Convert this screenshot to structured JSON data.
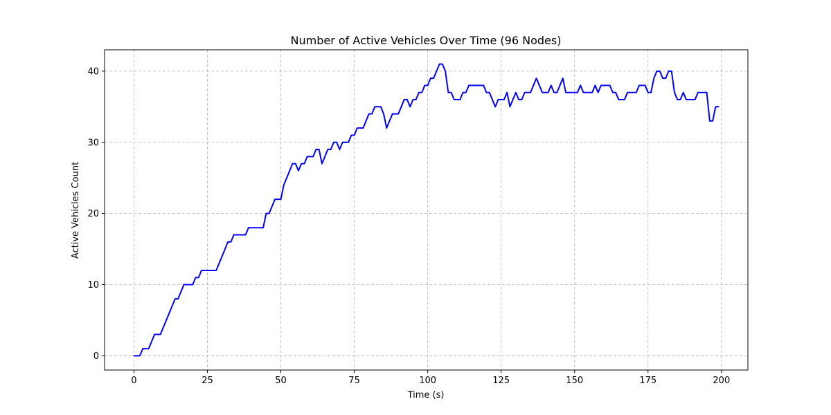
{
  "chart_data": {
    "type": "line",
    "title": "Number of Active Vehicles Over Time (96 Nodes)",
    "xlabel": "Time (s)",
    "ylabel": "Active Vehicles Count",
    "xlim": [
      -10,
      209
    ],
    "ylim": [
      -2,
      43
    ],
    "xticks": [
      0,
      25,
      50,
      75,
      100,
      125,
      150,
      175,
      200
    ],
    "yticks": [
      0,
      10,
      20,
      30,
      40
    ],
    "xtick_labels": [
      "0",
      "25",
      "50",
      "75",
      "100",
      "125",
      "150",
      "175",
      "200"
    ],
    "ytick_labels": [
      "0",
      "10",
      "20",
      "30",
      "40"
    ],
    "grid": true,
    "line_color": "#0000ff",
    "grid_color": "#b0b0b0",
    "series": [
      {
        "x": [
          0,
          1,
          2,
          3,
          4,
          5,
          6,
          7,
          8,
          9,
          10,
          11,
          12,
          13,
          14,
          15,
          16,
          17,
          18,
          19,
          20,
          21,
          22,
          23,
          24,
          25,
          26,
          27,
          28,
          29,
          30,
          31,
          32,
          33,
          34,
          35,
          36,
          37,
          38,
          39,
          40,
          41,
          42,
          43,
          44,
          45,
          46,
          47,
          48,
          49,
          50,
          51,
          52,
          53,
          54,
          55,
          56,
          57,
          58,
          59,
          60,
          61,
          62,
          63,
          64,
          65,
          66,
          67,
          68,
          69,
          70,
          71,
          72,
          73,
          74,
          75,
          76,
          77,
          78,
          79,
          80,
          81,
          82,
          83,
          84,
          85,
          86,
          87,
          88,
          89,
          90,
          91,
          92,
          93,
          94,
          95,
          96,
          97,
          98,
          99,
          100,
          101,
          102,
          103,
          104,
          105,
          106,
          107,
          108,
          109,
          110,
          111,
          112,
          113,
          114,
          115,
          116,
          117,
          118,
          119,
          120,
          121,
          122,
          123,
          124,
          125,
          126,
          127,
          128,
          129,
          130,
          131,
          132,
          133,
          134,
          135,
          136,
          137,
          138,
          139,
          140,
          141,
          142,
          143,
          144,
          145,
          146,
          147,
          148,
          149,
          150,
          151,
          152,
          153,
          154,
          155,
          156,
          157,
          158,
          159,
          160,
          161,
          162,
          163,
          164,
          165,
          166,
          167,
          168,
          169,
          170,
          171,
          172,
          173,
          174,
          175,
          176,
          177,
          178,
          179,
          180,
          181,
          182,
          183,
          184,
          185,
          186,
          187,
          188,
          189,
          190,
          191,
          192,
          193,
          194,
          195,
          196,
          197,
          198,
          199
        ],
        "values": [
          0,
          0,
          0,
          1,
          1,
          1,
          2,
          3,
          3,
          3,
          4,
          5,
          6,
          7,
          8,
          8,
          9,
          10,
          10,
          10,
          10,
          11,
          11,
          12,
          12,
          12,
          12,
          12,
          12,
          13,
          14,
          15,
          16,
          16,
          17,
          17,
          17,
          17,
          17,
          18,
          18,
          18,
          18,
          18,
          18,
          20,
          20,
          21,
          22,
          22,
          22,
          24,
          25,
          26,
          27,
          27,
          26,
          27,
          27,
          28,
          28,
          28,
          29,
          29,
          27,
          28,
          29,
          29,
          30,
          30,
          29,
          30,
          30,
          30,
          31,
          31,
          32,
          32,
          32,
          33,
          34,
          34,
          35,
          35,
          35,
          34,
          32,
          33,
          34,
          34,
          34,
          35,
          36,
          36,
          35,
          36,
          36,
          37,
          37,
          38,
          38,
          39,
          39,
          40,
          41,
          41,
          40,
          37,
          37,
          36,
          36,
          36,
          37,
          37,
          38,
          38,
          38,
          38,
          38,
          38,
          37,
          37,
          36,
          35,
          36,
          36,
          36,
          37,
          35,
          36,
          37,
          36,
          36,
          37,
          37,
          37,
          38,
          39,
          38,
          37,
          37,
          37,
          38,
          37,
          37,
          38,
          39,
          37,
          37,
          37,
          37,
          37,
          38,
          37,
          37,
          37,
          37,
          38,
          37,
          38,
          38,
          38,
          38,
          37,
          37,
          36,
          36,
          36,
          37,
          37,
          37,
          37,
          38,
          38,
          38,
          37,
          37,
          39,
          40,
          40,
          39,
          39,
          40,
          40,
          37,
          36,
          36,
          37,
          36,
          36,
          36,
          36,
          37,
          37,
          37,
          37,
          33,
          33,
          35,
          35
        ]
      }
    ]
  }
}
